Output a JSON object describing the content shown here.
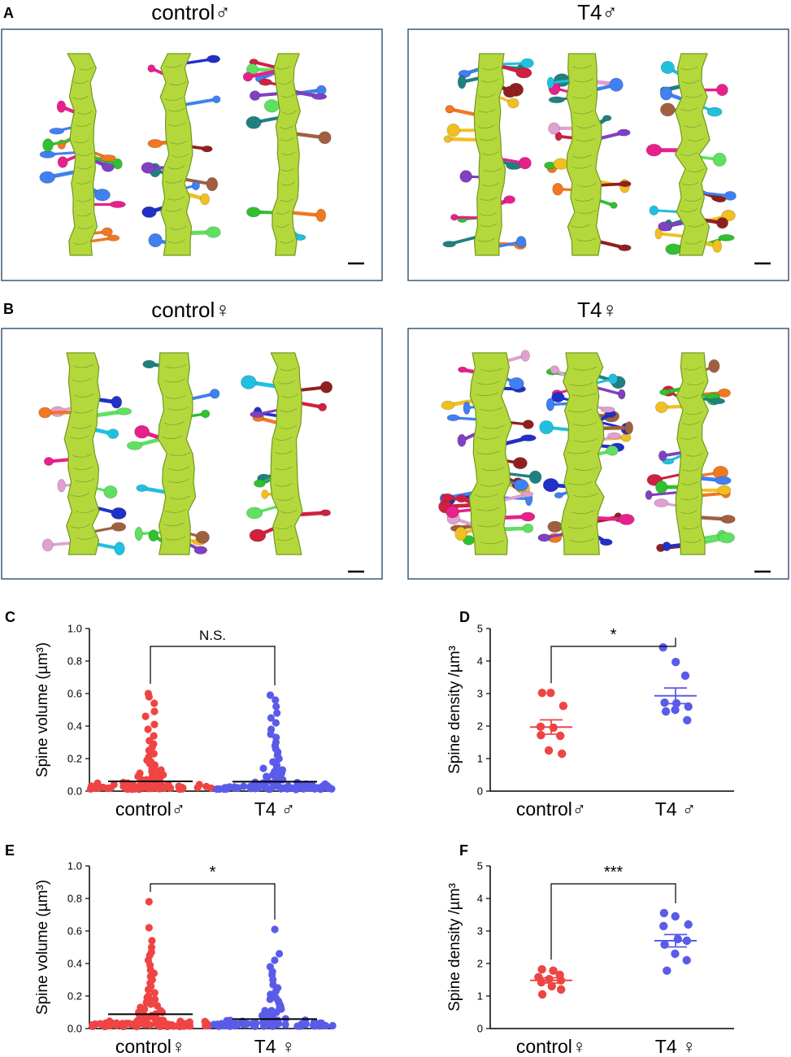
{
  "panels": {
    "A": {
      "letter": "A",
      "left_title": "control♂",
      "right_title": "T4♂"
    },
    "B": {
      "letter": "B",
      "left_title": "control♀",
      "right_title": "T4♀"
    }
  },
  "colors": {
    "dendrite": "#b4d83c",
    "dendrite_edge": "#6f9a1e",
    "frame": "#3a5a7c",
    "control": "#ee4444",
    "t4": "#5b5bea",
    "spine_palette": [
      "#e8208a",
      "#2030c8",
      "#20c0e0",
      "#f07820",
      "#d02040",
      "#30c030",
      "#8040c0",
      "#f0c020",
      "#e0a0d0",
      "#208080",
      "#902020",
      "#60e060",
      "#4080f0",
      "#a06040"
    ]
  },
  "chart_data": [
    {
      "panel": "C",
      "type": "scatter",
      "ylabel": "Spine volume (µm³)",
      "ylim": [
        0,
        1.0
      ],
      "yticks": [
        "0.0",
        "0.2",
        "0.4",
        "0.6",
        "0.8",
        "1.0"
      ],
      "categories": [
        "control♂",
        "T4 ♂"
      ],
      "means": [
        0.06,
        0.058
      ],
      "sem": [
        0.004,
        0.004
      ],
      "significance": "N.S.",
      "series": [
        {
          "values": [
            0.6,
            0.58,
            0.54,
            0.49,
            0.46,
            0.41,
            0.38,
            0.34,
            0.31,
            0.29,
            0.27,
            0.25,
            0.23,
            0.21,
            0.19,
            0.18,
            0.17,
            0.16,
            0.15,
            0.14,
            0.13,
            0.12,
            0.12,
            0.11,
            0.1,
            0.1,
            0.09,
            0.09,
            0.08,
            0.08,
            0.07,
            0.07,
            0.07,
            0.06,
            0.06,
            0.06,
            0.05,
            0.05,
            0.05,
            0.05,
            0.04,
            0.04,
            0.04,
            0.04,
            0.03,
            0.03,
            0.03,
            0.03,
            0.03,
            0.02,
            0.02,
            0.02,
            0.02,
            0.02,
            0.02,
            0.01,
            0.01,
            0.01,
            0.01,
            0.01,
            0.01,
            0.01,
            0.01,
            0.01,
            0.01,
            0.01
          ]
        },
        {
          "values": [
            0.59,
            0.56,
            0.52,
            0.48,
            0.45,
            0.42,
            0.38,
            0.35,
            0.33,
            0.3,
            0.28,
            0.26,
            0.24,
            0.22,
            0.2,
            0.18,
            0.17,
            0.16,
            0.15,
            0.14,
            0.13,
            0.12,
            0.11,
            0.11,
            0.1,
            0.1,
            0.09,
            0.09,
            0.08,
            0.08,
            0.07,
            0.07,
            0.07,
            0.06,
            0.06,
            0.06,
            0.05,
            0.05,
            0.05,
            0.05,
            0.04,
            0.04,
            0.04,
            0.04,
            0.03,
            0.03,
            0.03,
            0.03,
            0.03,
            0.02,
            0.02,
            0.02,
            0.02,
            0.02,
            0.02,
            0.01,
            0.01,
            0.01,
            0.01,
            0.01,
            0.01,
            0.01,
            0.01,
            0.01,
            0.01,
            0.01
          ]
        }
      ]
    },
    {
      "panel": "D",
      "type": "scatter",
      "ylabel": "Spine density /µm³",
      "ylim": [
        0,
        5
      ],
      "yticks": [
        "0",
        "1",
        "2",
        "3",
        "4",
        "5"
      ],
      "categories": [
        "control♂",
        "T4 ♂"
      ],
      "means": [
        1.97,
        2.93
      ],
      "sem": [
        0.22,
        0.24
      ],
      "significance": "*",
      "series": [
        {
          "values": [
            3.02,
            3.02,
            2.62,
            1.98,
            1.95,
            1.7,
            1.72,
            1.25,
            1.15
          ]
        },
        {
          "values": [
            4.42,
            3.97,
            3.55,
            2.72,
            2.7,
            2.6,
            2.45,
            2.5,
            2.18
          ]
        }
      ]
    },
    {
      "panel": "E",
      "type": "scatter",
      "ylabel": "Spine volume (µm³)",
      "ylim": [
        0,
        1.0
      ],
      "yticks": [
        "0.0",
        "0.2",
        "0.4",
        "0.6",
        "0.8",
        "1.0"
      ],
      "categories": [
        "control♀",
        "T4 ♀"
      ],
      "means": [
        0.088,
        0.058
      ],
      "sem": [
        0.008,
        0.005
      ],
      "significance": "*",
      "series": [
        {
          "values": [
            0.78,
            0.62,
            0.54,
            0.5,
            0.47,
            0.45,
            0.42,
            0.39,
            0.36,
            0.34,
            0.32,
            0.3,
            0.28,
            0.26,
            0.24,
            0.22,
            0.2,
            0.19,
            0.18,
            0.17,
            0.16,
            0.15,
            0.14,
            0.13,
            0.12,
            0.11,
            0.1,
            0.1,
            0.09,
            0.09,
            0.08,
            0.08,
            0.07,
            0.07,
            0.07,
            0.06,
            0.06,
            0.06,
            0.05,
            0.05,
            0.05,
            0.05,
            0.04,
            0.04,
            0.04,
            0.04,
            0.03,
            0.03,
            0.03,
            0.03,
            0.03,
            0.02,
            0.02,
            0.02,
            0.02,
            0.02,
            0.02,
            0.01,
            0.01,
            0.01,
            0.01,
            0.01,
            0.01,
            0.01,
            0.01
          ]
        },
        {
          "values": [
            0.61,
            0.46,
            0.42,
            0.38,
            0.35,
            0.33,
            0.3,
            0.27,
            0.25,
            0.23,
            0.21,
            0.19,
            0.18,
            0.17,
            0.16,
            0.15,
            0.14,
            0.13,
            0.12,
            0.11,
            0.11,
            0.1,
            0.1,
            0.09,
            0.09,
            0.08,
            0.08,
            0.07,
            0.07,
            0.07,
            0.06,
            0.06,
            0.06,
            0.05,
            0.05,
            0.05,
            0.05,
            0.04,
            0.04,
            0.04,
            0.04,
            0.03,
            0.03,
            0.03,
            0.03,
            0.03,
            0.02,
            0.02,
            0.02,
            0.02,
            0.02,
            0.02,
            0.01,
            0.01,
            0.01,
            0.01,
            0.01,
            0.01,
            0.01,
            0.01,
            0.01
          ]
        }
      ]
    },
    {
      "panel": "F",
      "type": "scatter",
      "ylabel": "Spine density /µm³",
      "ylim": [
        0,
        5
      ],
      "yticks": [
        "0",
        "1",
        "2",
        "3",
        "4",
        "5"
      ],
      "categories": [
        "control♀",
        "T4 ♀"
      ],
      "means": [
        1.48,
        2.7
      ],
      "sem": [
        0.08,
        0.19
      ],
      "significance": "***",
      "series": [
        {
          "values": [
            1.82,
            1.78,
            1.65,
            1.58,
            1.52,
            1.48,
            1.42,
            1.3,
            1.2,
            1.05
          ]
        },
        {
          "values": [
            3.55,
            3.45,
            3.2,
            3.15,
            2.75,
            2.7,
            2.58,
            2.3,
            2.1,
            1.78
          ]
        }
      ]
    }
  ]
}
